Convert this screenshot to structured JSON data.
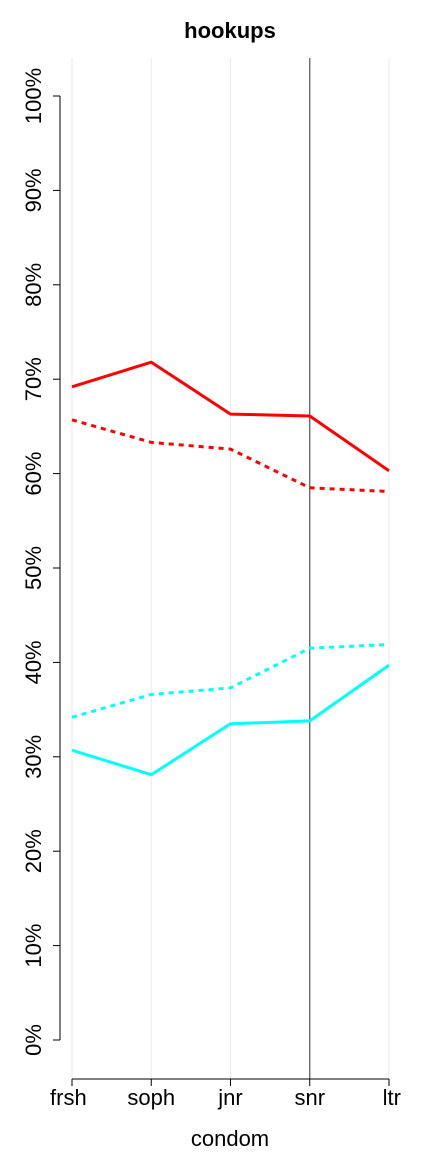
{
  "chart_data": {
    "type": "line",
    "title": "hookups",
    "xlabel": "condom",
    "ylabel": "",
    "categories": [
      "frsh",
      "soph",
      "jnr",
      "snr",
      "ltr"
    ],
    "yticks": [
      "0%",
      "10%",
      "20%",
      "30%",
      "40%",
      "50%",
      "60%",
      "70%",
      "80%",
      "90%",
      "100%"
    ],
    "ylim": [
      0,
      100
    ],
    "reference_line_category": "snr",
    "grid": "vertical",
    "series": [
      {
        "color": "#ff0000",
        "style": "solid",
        "values": [
          69.2,
          71.8,
          66.3,
          66.1,
          60.3
        ]
      },
      {
        "color": "#ff0000",
        "style": "dashed",
        "values": [
          65.7,
          63.3,
          62.6,
          58.5,
          58.1
        ]
      },
      {
        "color": "#00ffff",
        "style": "dashed",
        "values": [
          34.2,
          36.6,
          37.3,
          41.5,
          41.9
        ]
      },
      {
        "color": "#00ffff",
        "style": "solid",
        "values": [
          30.7,
          28.1,
          33.5,
          33.8,
          39.7
        ]
      }
    ]
  }
}
